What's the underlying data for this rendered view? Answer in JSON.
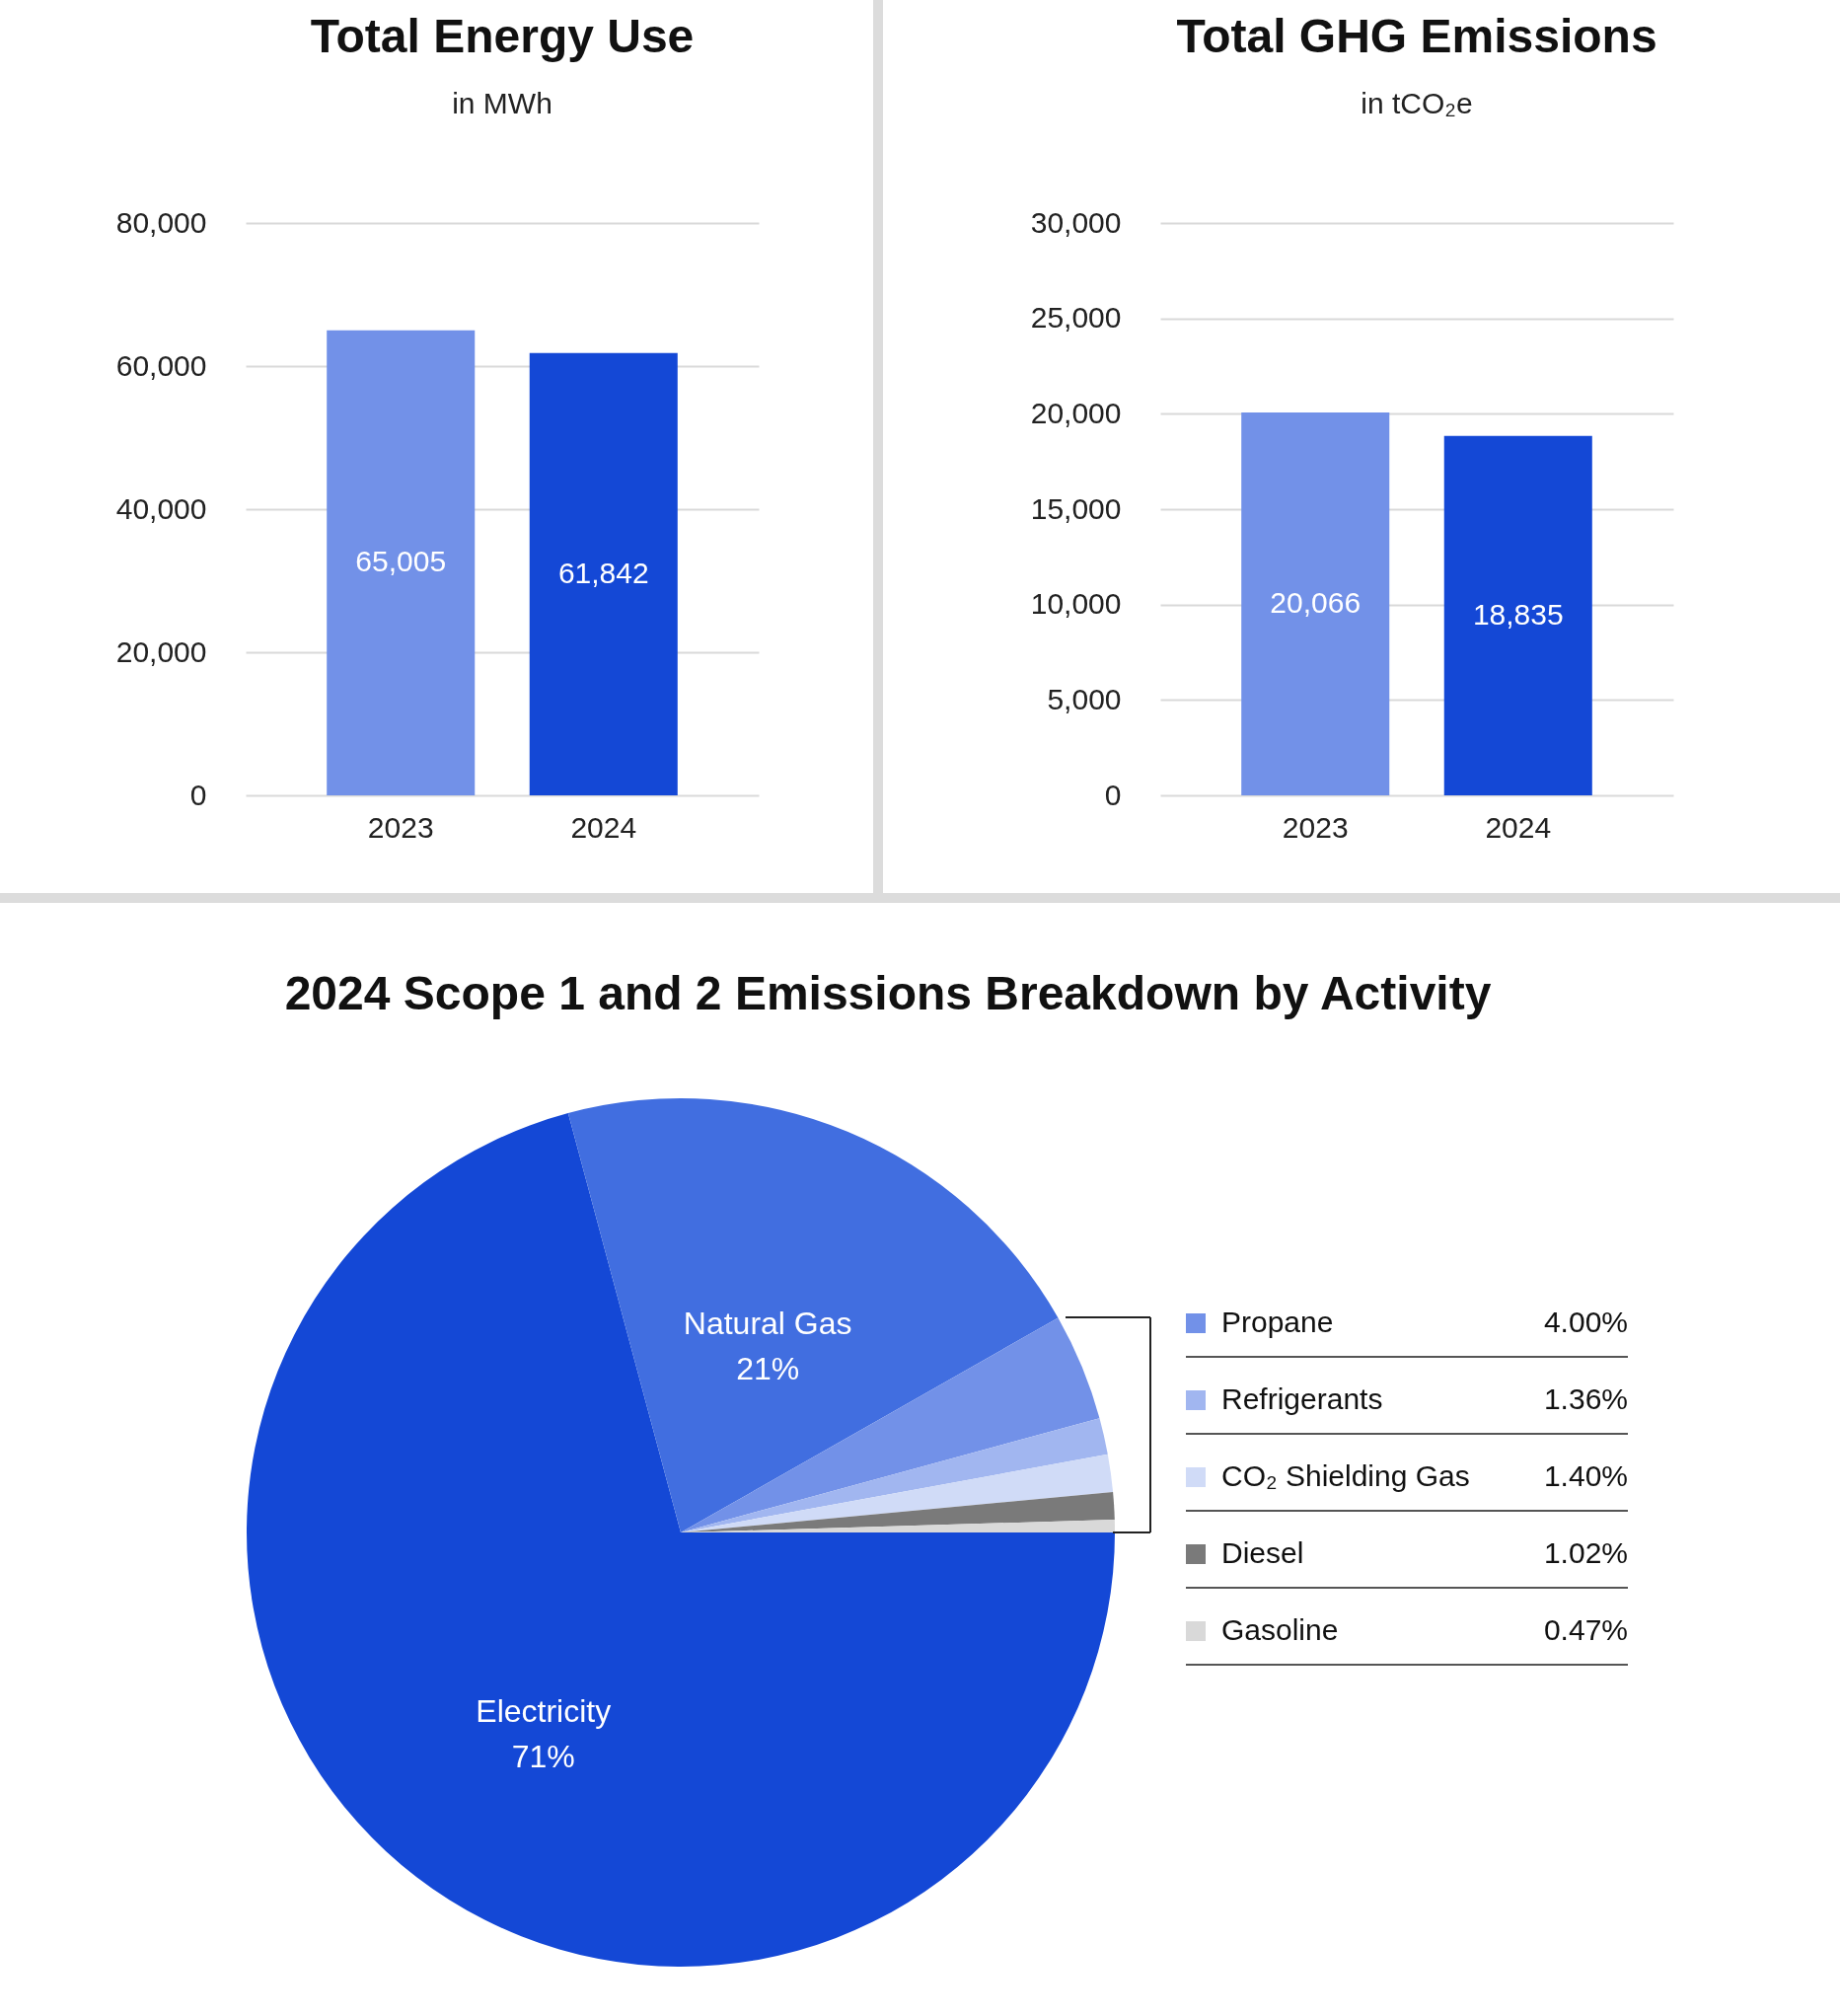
{
  "chart_data": [
    {
      "type": "bar",
      "title": "Total Energy Use",
      "subtitle": "in MWh",
      "categories": [
        "2023",
        "2024"
      ],
      "values": [
        65005,
        61842
      ],
      "value_labels": [
        "65,005",
        "61,842"
      ],
      "colors": [
        "#7291e8",
        "#1448d6"
      ],
      "ylim": [
        0,
        80000
      ],
      "yticks": [
        0,
        {
          "value": 20000,
          "label": "20,000"
        },
        {
          "value": 40000,
          "label": "40,000"
        },
        {
          "value": 60000,
          "label": "60,000"
        },
        {
          "value": 80000,
          "label": "80,000"
        }
      ],
      "grid": "y"
    },
    {
      "type": "bar",
      "title": "Total GHG Emissions",
      "subtitle": "in tCO₂e",
      "categories": [
        "2023",
        "2024"
      ],
      "values": [
        20066,
        18835
      ],
      "value_labels": [
        "20,066",
        "18,835"
      ],
      "colors": [
        "#7291e8",
        "#1448d6"
      ],
      "ylim": [
        0,
        30000
      ],
      "yticks": [
        0,
        {
          "value": 5000,
          "label": "5,000"
        },
        {
          "value": 10000,
          "label": "10,000"
        },
        {
          "value": 15000,
          "label": "15,000"
        },
        {
          "value": 20000,
          "label": "20,000"
        },
        {
          "value": 25000,
          "label": "25,000"
        },
        {
          "value": 30000,
          "label": "30,000"
        }
      ],
      "grid": "y"
    },
    {
      "type": "pie",
      "title": "2024 Scope 1 and 2 Emissions Breakdown by Activity",
      "categories": [
        "Electricity",
        "Natural Gas",
        "Propane",
        "Refrigerants",
        "CO₂ Shielding Gas",
        "Diesel",
        "Gasoline"
      ],
      "values": [
        71,
        21,
        4.0,
        1.36,
        1.4,
        1.02,
        0.47
      ],
      "colors": [
        "#1448d6",
        "#416ee0",
        "#7291e8",
        "#a1b6f0",
        "#d0dbf7",
        "#7a7a7a",
        "#d9d9d9"
      ],
      "legend": "right",
      "value_labels": [
        "71%",
        "21%",
        "4.00%",
        "1.36%",
        "1.40%",
        "1.02%",
        "0.47%"
      ]
    }
  ]
}
